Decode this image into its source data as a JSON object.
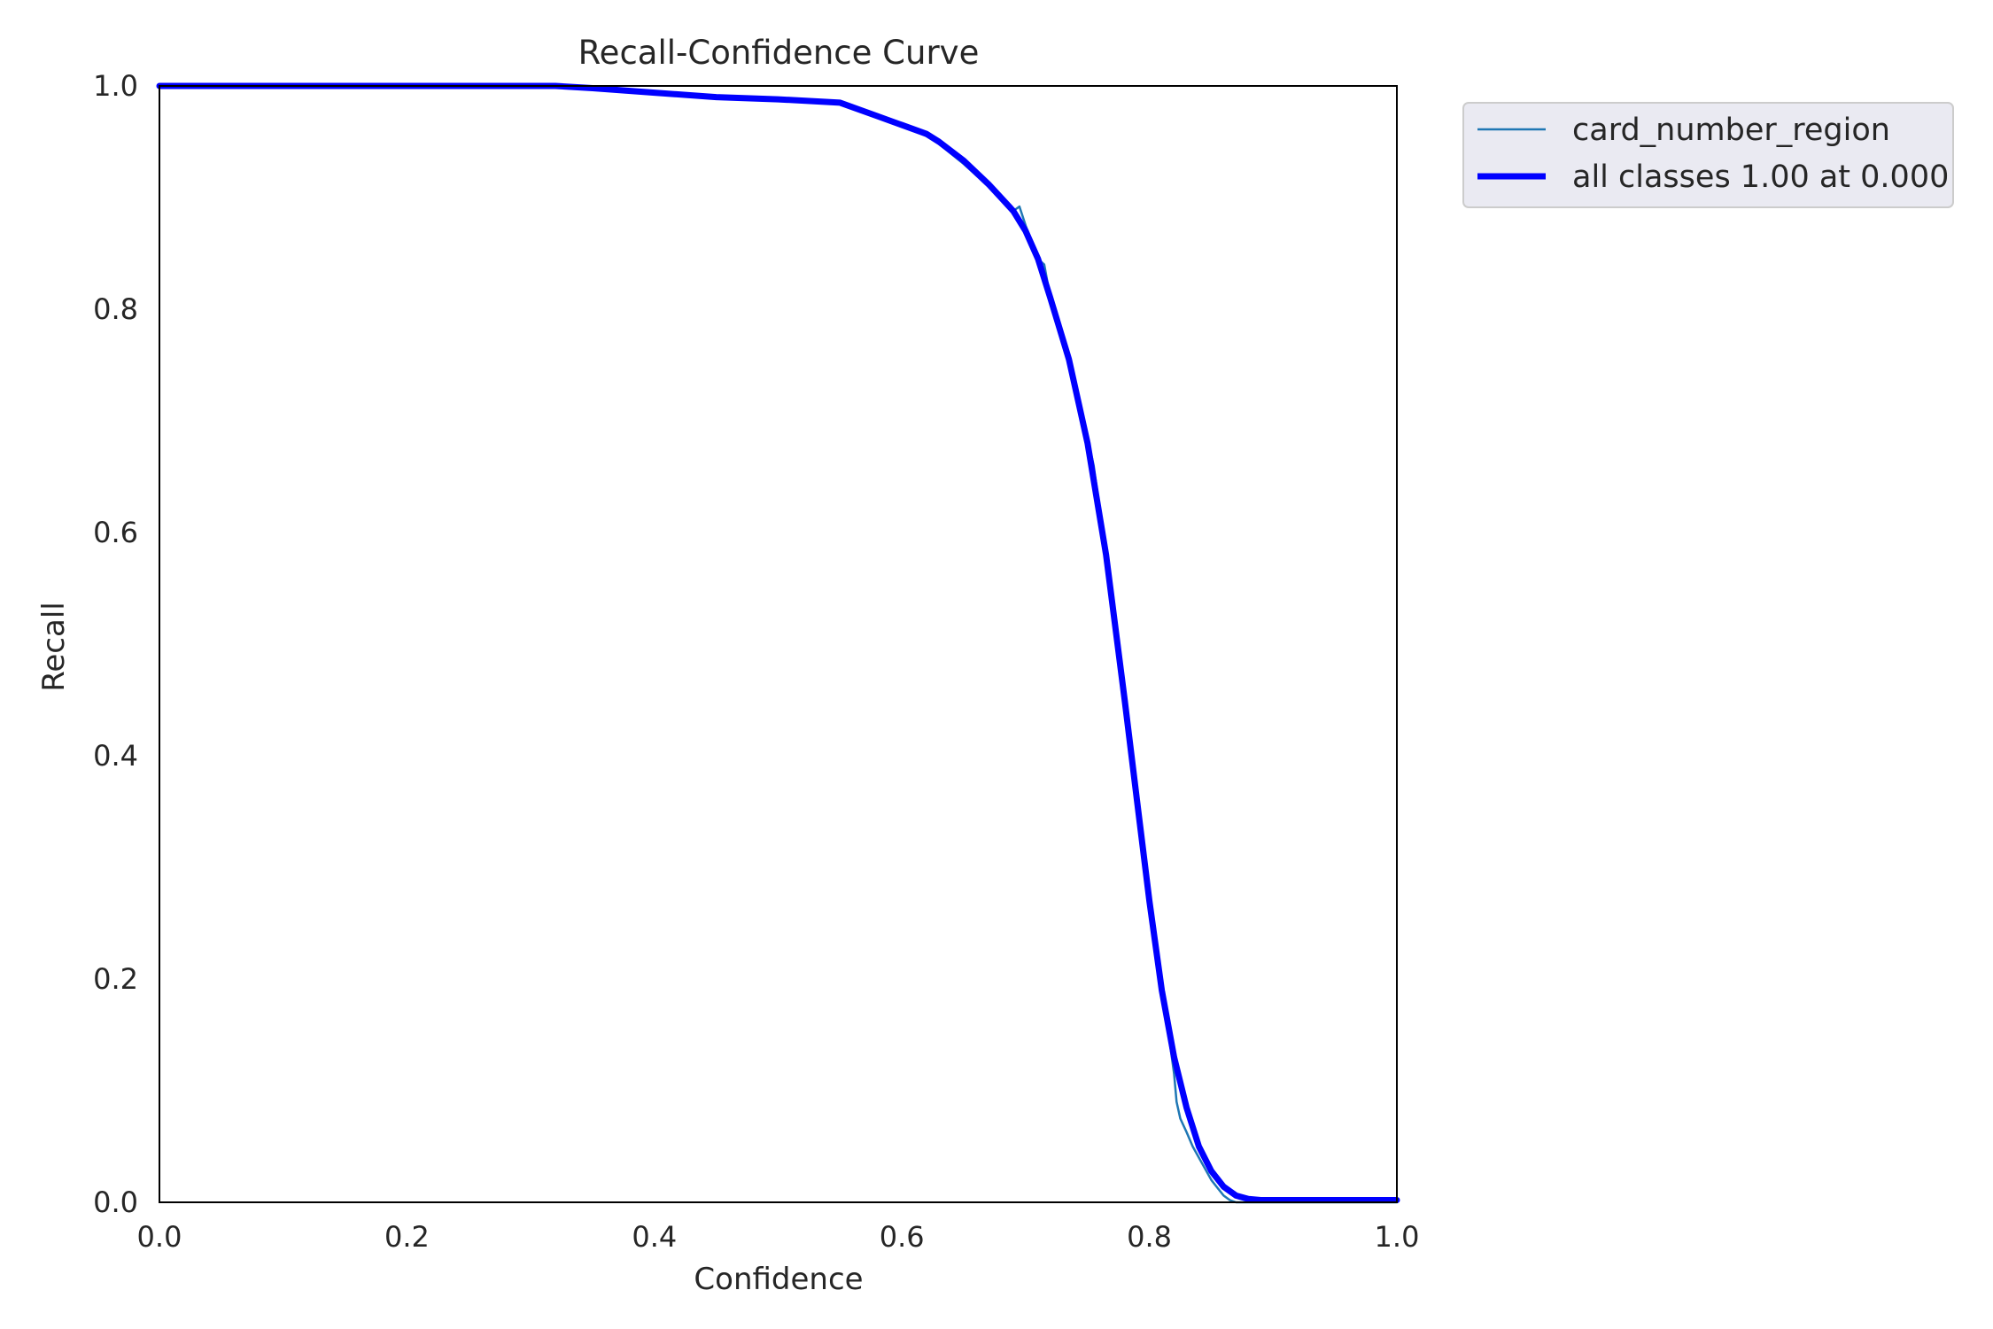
{
  "chart_data": {
    "type": "line",
    "title": "Recall-Confidence Curve",
    "xlabel": "Confidence",
    "ylabel": "Recall",
    "xlim": [
      0,
      1
    ],
    "ylim": [
      0,
      1
    ],
    "x_ticks": [
      "0.0",
      "0.2",
      "0.4",
      "0.6",
      "0.8",
      "1.0"
    ],
    "y_ticks": [
      "0.0",
      "0.2",
      "0.4",
      "0.6",
      "0.8",
      "1.0"
    ],
    "grid": false,
    "legend_position": "outside-top-right",
    "series": [
      {
        "name": "card_number_region",
        "color": "#1f77b4",
        "style": "thin",
        "x": [
          0.0,
          0.1,
          0.2,
          0.3,
          0.32,
          0.35,
          0.4,
          0.45,
          0.5,
          0.55,
          0.58,
          0.6,
          0.62,
          0.63,
          0.65,
          0.67,
          0.68,
          0.69,
          0.695,
          0.7,
          0.71,
          0.715,
          0.72,
          0.735,
          0.75,
          0.755,
          0.765,
          0.78,
          0.79,
          0.8,
          0.81,
          0.815,
          0.82,
          0.822,
          0.825,
          0.83,
          0.835,
          0.84,
          0.845,
          0.85,
          0.855,
          0.86,
          0.865,
          0.87,
          0.88,
          0.9,
          0.95,
          1.0
        ],
        "y": [
          1.0,
          1.0,
          1.0,
          1.0,
          1.0,
          0.998,
          0.994,
          0.99,
          0.988,
          0.985,
          0.972,
          0.965,
          0.955,
          0.948,
          0.93,
          0.91,
          0.9,
          0.888,
          0.892,
          0.875,
          0.845,
          0.84,
          0.81,
          0.755,
          0.685,
          0.66,
          0.58,
          0.45,
          0.36,
          0.27,
          0.19,
          0.155,
          0.115,
          0.09,
          0.075,
          0.063,
          0.05,
          0.04,
          0.03,
          0.02,
          0.013,
          0.006,
          0.002,
          0.0,
          0.0,
          0.0,
          0.0,
          0.0
        ]
      },
      {
        "name": "all classes 1.00 at 0.000",
        "color": "#0000ff",
        "style": "thick",
        "x": [
          0.0,
          0.1,
          0.2,
          0.3,
          0.32,
          0.35,
          0.4,
          0.45,
          0.5,
          0.55,
          0.58,
          0.6,
          0.62,
          0.63,
          0.65,
          0.67,
          0.68,
          0.69,
          0.7,
          0.71,
          0.72,
          0.735,
          0.75,
          0.765,
          0.78,
          0.79,
          0.8,
          0.81,
          0.82,
          0.83,
          0.84,
          0.85,
          0.86,
          0.87,
          0.88,
          0.89,
          0.9,
          0.95,
          1.0
        ],
        "y": [
          1.0,
          1.0,
          1.0,
          1.0,
          1.0,
          0.998,
          0.994,
          0.99,
          0.988,
          0.985,
          0.973,
          0.965,
          0.957,
          0.95,
          0.933,
          0.912,
          0.9,
          0.888,
          0.87,
          0.845,
          0.81,
          0.755,
          0.68,
          0.58,
          0.45,
          0.36,
          0.27,
          0.19,
          0.13,
          0.085,
          0.05,
          0.028,
          0.014,
          0.006,
          0.003,
          0.002,
          0.002,
          0.002,
          0.002
        ]
      }
    ]
  }
}
